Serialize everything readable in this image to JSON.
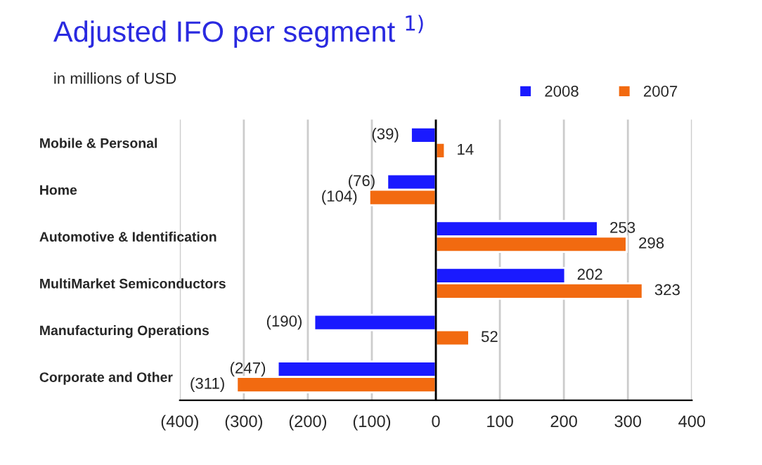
{
  "chart_data": {
    "type": "bar",
    "orientation": "horizontal",
    "title": "Adjusted IFO per segment $^{1)}$",
    "subtitle": "in millions of USD",
    "categories": [
      "Mobile & Personal",
      "Home",
      "Automotive & Identification",
      "MultiMarket Semiconductors",
      "Manufacturing Operations",
      "Corporate and Other"
    ],
    "series": [
      {
        "name": "2008",
        "color": "#1a1aff",
        "values": [
          -39,
          -76,
          253,
          202,
          -190,
          -247
        ],
        "value_labels": [
          "(39)",
          "(76)",
          "253",
          "202",
          "(190)",
          "(247)"
        ]
      },
      {
        "name": "2007",
        "color": "#f26a10",
        "values": [
          14,
          -104,
          298,
          323,
          52,
          -311
        ],
        "value_labels": [
          "14",
          "(104)",
          "298",
          "323",
          "52",
          "(311)"
        ]
      }
    ],
    "xlim": [
      -400,
      400
    ],
    "xticks": [
      {
        "value": -400,
        "label": "(400)"
      },
      {
        "value": -300,
        "label": "(300)"
      },
      {
        "value": -200,
        "label": "(200)"
      },
      {
        "value": -100,
        "label": "(100)"
      },
      0,
      100,
      200,
      300,
      400
    ],
    "grid": "x",
    "legend": "top right"
  }
}
